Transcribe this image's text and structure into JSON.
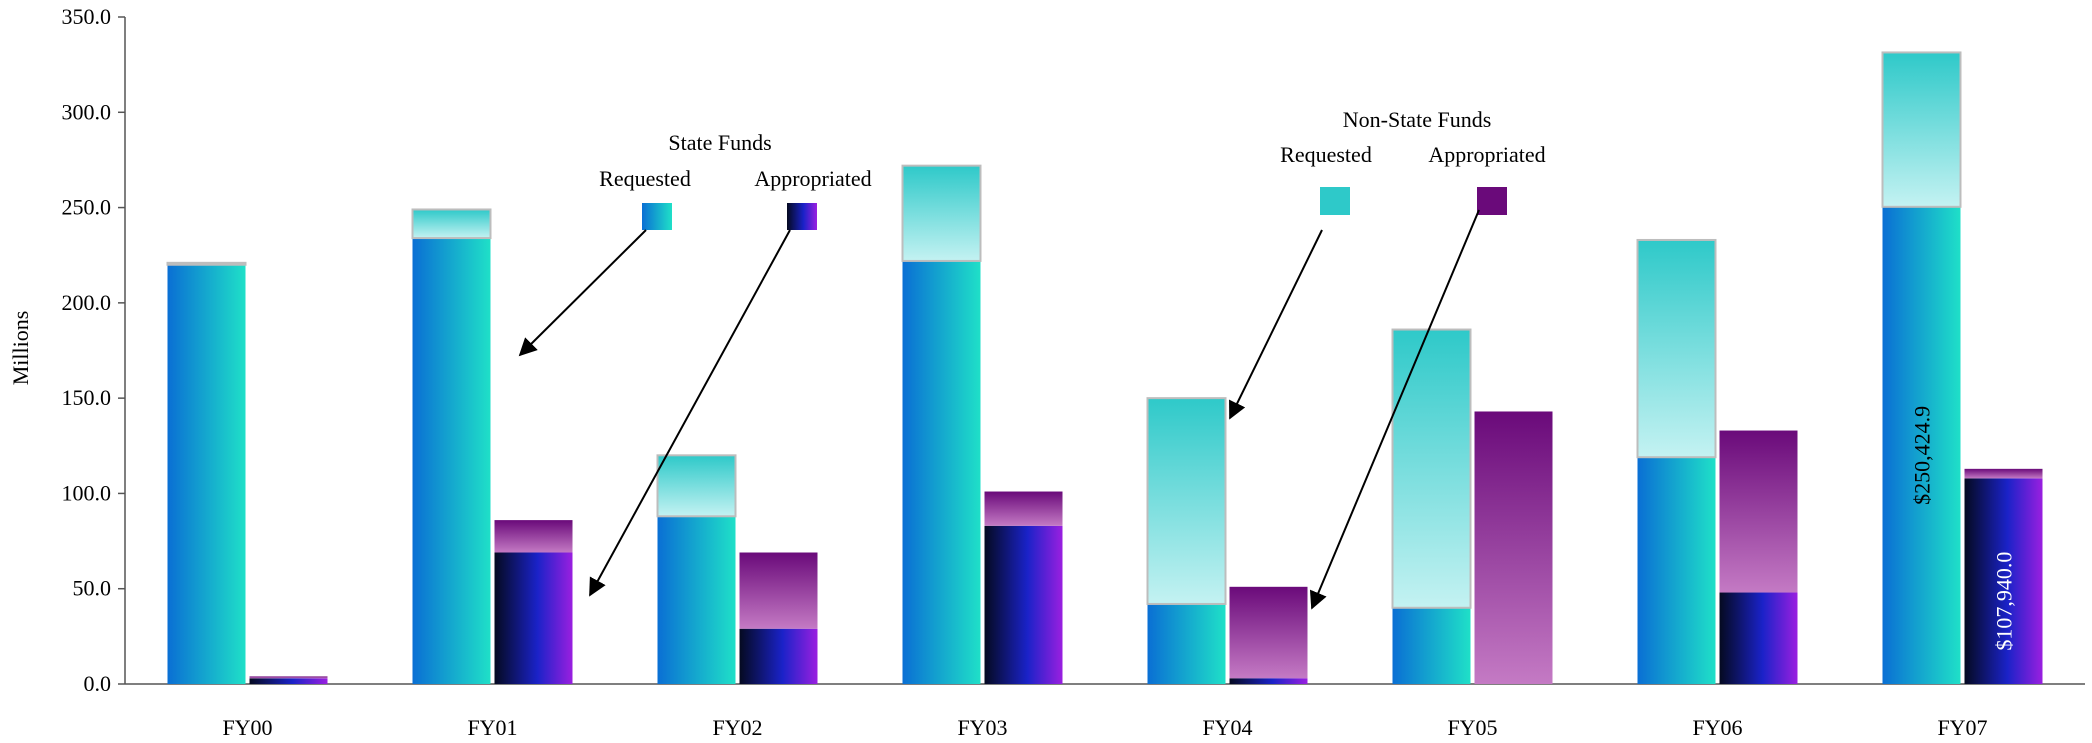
{
  "chart_data": {
    "type": "bar",
    "stacked": true,
    "categories": [
      "FY00",
      "FY01",
      "FY02",
      "FY03",
      "FY04",
      "FY05",
      "FY06",
      "FY07"
    ],
    "ylabel": "Millions",
    "ylim": [
      0,
      350
    ],
    "yticks": [
      "0.0",
      "50.0",
      "100.0",
      "150.0",
      "200.0",
      "250.0",
      "300.0",
      "350.0"
    ],
    "grid": false,
    "series": [
      {
        "group": "requested",
        "values": [
          220,
          234,
          88,
          222,
          42,
          40,
          119,
          250.4
        ]
      },
      {
        "group": "requested",
        "values": [
          1,
          15,
          32,
          50,
          108,
          146,
          114,
          81
        ]
      },
      {
        "group": "appropriated",
        "values": [
          3,
          69,
          29,
          83,
          3,
          0,
          48,
          107.9
        ]
      },
      {
        "group": "appropriated",
        "values": [
          1,
          17,
          40,
          18,
          48,
          143,
          85,
          5
        ]
      }
    ],
    "data_labels": [
      {
        "category": "FY07",
        "series": 0,
        "text": "$250,424.9"
      },
      {
        "category": "FY07",
        "series": 2,
        "text": "$107,940.0"
      }
    ],
    "annotations": {
      "state_funds": {
        "title": "State Funds",
        "requested": "Requested",
        "appropriated": "Appropriated"
      },
      "non_state_funds": {
        "title": "Non-State Funds",
        "requested": "Requested",
        "appropriated": "Appropriated"
      }
    }
  },
  "colors": {
    "state_requested": [
      "#0a6fd4",
      "#1fe0c8"
    ],
    "state_appropriated": [
      "#050a20",
      "#1a22c8",
      "#9a1fe0"
    ],
    "nonstate_requested": [
      "#2ec9c9",
      "#c4f2f2"
    ],
    "nonstate_appropriated": [
      "#6a0a7a",
      "#c47ac4"
    ]
  }
}
